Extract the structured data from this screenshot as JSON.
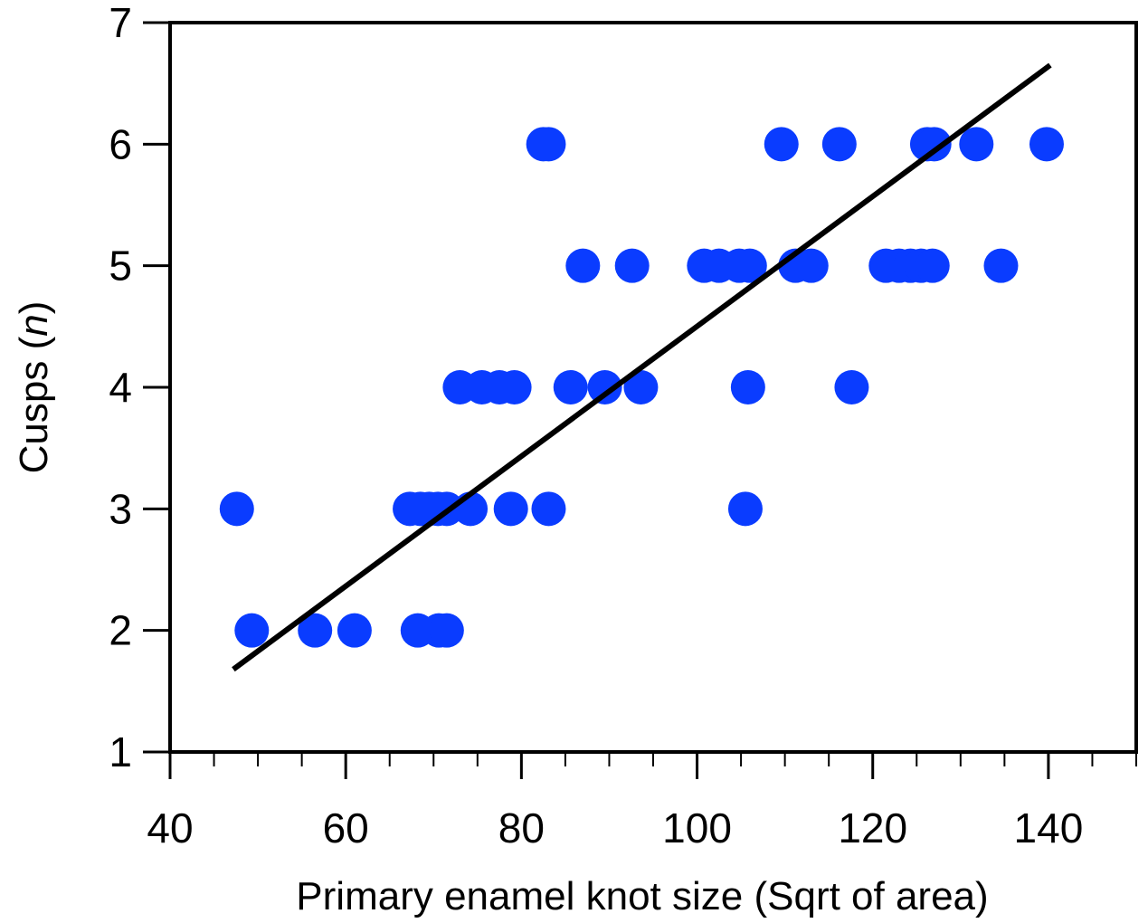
{
  "chart_data": {
    "type": "scatter",
    "xlabel": "Primary enamel knot size (Sqrt of area)",
    "ylabel_main": "Cusps (",
    "ylabel_var": "n",
    "ylabel_end": ")",
    "xlim": [
      40,
      150
    ],
    "ylim": [
      1,
      7
    ],
    "x_ticks": [
      40,
      60,
      80,
      100,
      120,
      140
    ],
    "x_tick_labels": [
      "40",
      "60",
      "80",
      "100",
      "120",
      "140"
    ],
    "x_minor_tick_step": 5,
    "y_ticks": [
      1,
      2,
      3,
      4,
      5,
      6,
      7
    ],
    "y_tick_labels": [
      "1",
      "2",
      "3",
      "4",
      "5",
      "6",
      "7"
    ],
    "grid": false,
    "legend": "none",
    "marker_color": "#0a3cff",
    "line_color": "#000000",
    "points": [
      {
        "x": 49.3,
        "y": 2
      },
      {
        "x": 56.5,
        "y": 2
      },
      {
        "x": 61.0,
        "y": 2
      },
      {
        "x": 68.2,
        "y": 2
      },
      {
        "x": 70.6,
        "y": 2
      },
      {
        "x": 71.5,
        "y": 2
      },
      {
        "x": 47.6,
        "y": 3
      },
      {
        "x": 67.3,
        "y": 3
      },
      {
        "x": 68.5,
        "y": 3
      },
      {
        "x": 69.5,
        "y": 3
      },
      {
        "x": 70.5,
        "y": 3
      },
      {
        "x": 71.5,
        "y": 3
      },
      {
        "x": 74.2,
        "y": 3
      },
      {
        "x": 78.8,
        "y": 3
      },
      {
        "x": 83.1,
        "y": 3
      },
      {
        "x": 105.5,
        "y": 3
      },
      {
        "x": 73.0,
        "y": 4
      },
      {
        "x": 75.5,
        "y": 4
      },
      {
        "x": 77.5,
        "y": 4
      },
      {
        "x": 79.2,
        "y": 4
      },
      {
        "x": 85.6,
        "y": 4
      },
      {
        "x": 89.5,
        "y": 4
      },
      {
        "x": 93.6,
        "y": 4
      },
      {
        "x": 105.8,
        "y": 4
      },
      {
        "x": 117.6,
        "y": 4
      },
      {
        "x": 87.0,
        "y": 5
      },
      {
        "x": 92.6,
        "y": 5
      },
      {
        "x": 100.8,
        "y": 5
      },
      {
        "x": 102.5,
        "y": 5
      },
      {
        "x": 104.8,
        "y": 5
      },
      {
        "x": 106.0,
        "y": 5
      },
      {
        "x": 111.2,
        "y": 5
      },
      {
        "x": 113.0,
        "y": 5
      },
      {
        "x": 121.5,
        "y": 5
      },
      {
        "x": 123.0,
        "y": 5
      },
      {
        "x": 124.3,
        "y": 5
      },
      {
        "x": 125.5,
        "y": 5
      },
      {
        "x": 126.8,
        "y": 5
      },
      {
        "x": 134.6,
        "y": 5
      },
      {
        "x": 82.5,
        "y": 6
      },
      {
        "x": 83.1,
        "y": 6
      },
      {
        "x": 109.6,
        "y": 6
      },
      {
        "x": 116.2,
        "y": 6
      },
      {
        "x": 126.2,
        "y": 6
      },
      {
        "x": 127.0,
        "y": 6
      },
      {
        "x": 131.8,
        "y": 6
      },
      {
        "x": 139.8,
        "y": 6
      }
    ],
    "fit_line": {
      "x": [
        47.2,
        140.2
      ],
      "y": [
        1.68,
        6.65
      ]
    }
  }
}
